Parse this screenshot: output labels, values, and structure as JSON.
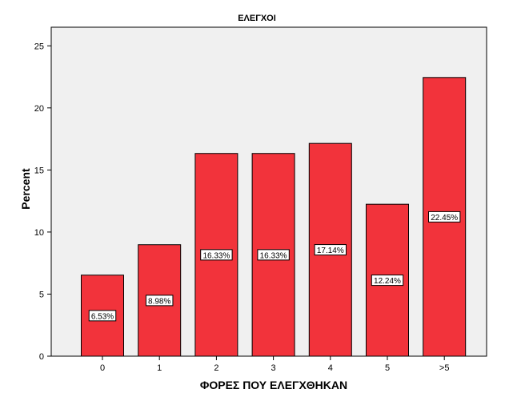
{
  "chart_data": {
    "type": "bar",
    "title": "ΕΛΕΓΧΟΙ",
    "xlabel": "ΦΟΡΕΣ ΠΟΥ ΕΛΕΓΧΘΗΚΑΝ",
    "ylabel": "Percent",
    "categories": [
      "0",
      "1",
      "2",
      "3",
      "4",
      "5",
      ">5"
    ],
    "values": [
      6.53,
      8.98,
      16.33,
      16.33,
      17.14,
      12.24,
      22.45
    ],
    "data_labels": [
      "6.53%",
      "8.98%",
      "16.33%",
      "16.33%",
      "17.14%",
      "12.24%",
      "22.45%"
    ],
    "ylim": [
      0,
      26.5
    ],
    "yticks": [
      0,
      5,
      10,
      15,
      20,
      25
    ],
    "grid": false,
    "legend": "none",
    "colors": {
      "bar_fill": "#f2333b",
      "bar_stroke": "#000000",
      "plot_background": "#f0f0f0",
      "label_box": "#ffffff"
    }
  }
}
